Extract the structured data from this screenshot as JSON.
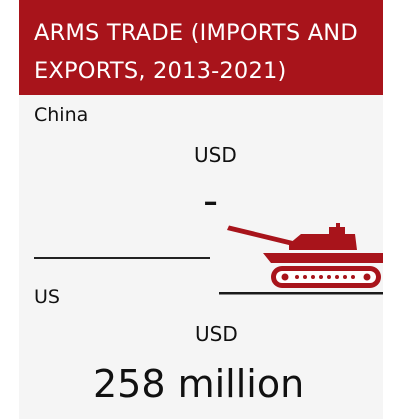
{
  "header": {
    "title": "ARMS TRADE (IMPORTS AND EXPORTS, 2013-2021)"
  },
  "china": {
    "label": "China",
    "currency": "USD",
    "value": "-"
  },
  "us": {
    "label": "US",
    "currency": "USD",
    "value": "258 million"
  },
  "icon": {
    "name": "tank-icon",
    "color": "#a8141b"
  },
  "colors": {
    "header_bg": "#a8141b",
    "card_bg": "#f5f5f5",
    "text": "#111111"
  }
}
